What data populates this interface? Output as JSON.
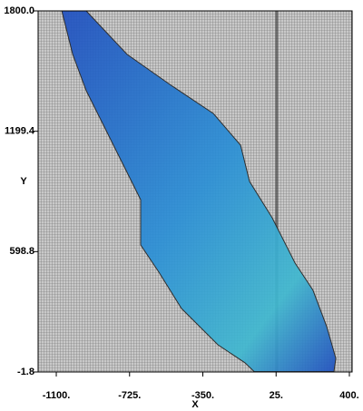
{
  "chart_data": {
    "type": "field",
    "x_label": "X",
    "y_label": "Y",
    "x": [
      -1072,
      -947,
      -738,
      -505,
      -296,
      -157,
      -111,
      5,
      122,
      214,
      284,
      331,
      321,
      -87,
      -134,
      -273,
      -459,
      -575,
      -668,
      -668,
      -738,
      -854,
      -947,
      -1016
    ],
    "y": [
      1800,
      1800,
      1583,
      1424,
      1288,
      1130,
      949,
      768,
      542,
      406,
      225,
      66,
      0,
      0,
      44,
      134,
      315,
      496,
      632,
      858,
      994,
      1221,
      1402,
      1583
    ],
    "color": "#2f6fd0",
    "xlim": [
      -1193,
      414
    ],
    "ylim": [
      -1.8,
      1800
    ],
    "xticks": [
      {
        "value": -1100,
        "label": "-1100."
      },
      {
        "value": -725,
        "label": "-725."
      },
      {
        "value": -350,
        "label": "-350."
      },
      {
        "value": 25,
        "label": "25."
      },
      {
        "value": 400,
        "label": "400."
      }
    ],
    "yticks": [
      {
        "value": 1800,
        "label": "1800.0"
      },
      1199.4,
      598.8,
      -1.8
    ]
  }
}
